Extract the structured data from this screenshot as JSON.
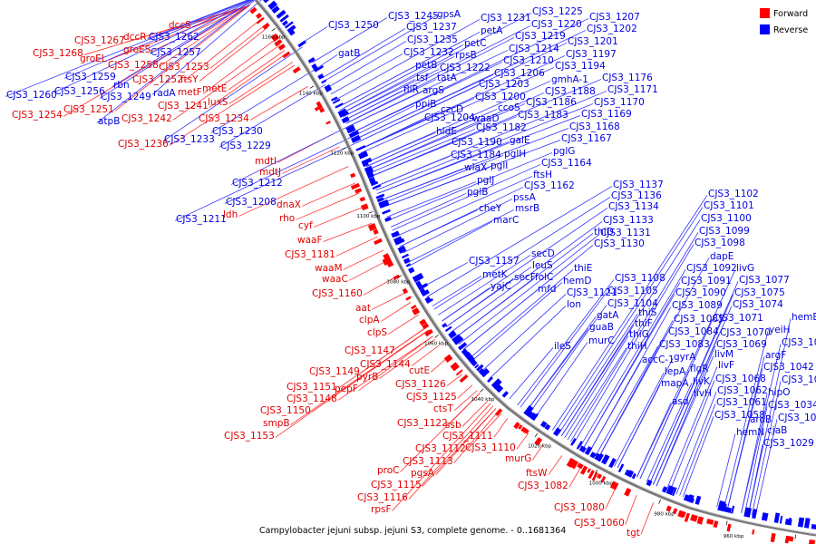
{
  "caption": "Campylobacter jejuni subsp. jejuni S3, complete genome. - 0..1681364",
  "legend": [
    {
      "label": "Forward",
      "color": "#ff0000"
    },
    {
      "label": "Reverse",
      "color": "#0000ff"
    }
  ],
  "strand_colors": {
    "forward": "#ff0000",
    "reverse": "#0000ff",
    "forward_line": "#ff3030",
    "reverse_line": "#3030ff"
  },
  "ticks": [
    "1160 kbp",
    "1140 kbp",
    "1120 kbp",
    "1100 kbp",
    "1080 kbp",
    "1060 kbp",
    "1040 kbp",
    "1020 kbp",
    "1000 kbp",
    "980 kbp",
    "960 kbp",
    "940 kbp"
  ],
  "forward_genes": [
    "dccS",
    "CJS3_1267",
    "dccR",
    "CJS3_1268",
    "groES",
    "groEL",
    "CJS3_1258",
    "CJS3_1253",
    "CJS3_1252",
    "ftsY",
    "metF",
    "metE",
    "luxS",
    "CJS3_1241",
    "CJS3_1254",
    "CJS3_1251",
    "CJS3_1242",
    "CJS3_1234",
    "CJS3_1236",
    "mdtI",
    "mdtJ",
    "dnaX",
    "ldh",
    "rho",
    "cyf",
    "waaF",
    "CJS3_1181",
    "waaM",
    "waaC",
    "CJS3_1160",
    "aat",
    "clpA",
    "clpS",
    "CJS3_1147",
    "CJS3_1144",
    "CJS3_1149",
    "pyrB",
    "CJS3_1151",
    "pepF",
    "CJS3_1148",
    "CJS3_1150",
    "smpB",
    "CJS3_1153",
    "cutE",
    "CJS3_1126",
    "CJS3_1125",
    "ctsT",
    "CJS3_1122",
    "ssb",
    "CJS3_1111",
    "CJS3_1112",
    "CJS3_1110",
    "CJS3_1113",
    "proC",
    "pgsA",
    "CJS3_1115",
    "CJS3_1116",
    "rpsF",
    "murG",
    "ftsW",
    "CJS3_1082",
    "CJS3_1080",
    "CJS3_1060",
    "tgt"
  ],
  "reverse_genes": [
    "CJS3_1262",
    "CJS3_1257",
    "CJS3_1259",
    "rbn",
    "CJS3_1256",
    "CJS3_1260",
    "CJS3_1249",
    "radA",
    "atpB",
    "CJS3_1230",
    "CJS3_1233",
    "CJS3_1229",
    "CJS3_1212",
    "CJS3_1208",
    "CJS3_1211",
    "CJS3_1250",
    "CJS3_1245",
    "gpsA",
    "CJS3_1237",
    "CJS3_1235",
    "gatB",
    "CJS3_1232",
    "petB",
    "tsf",
    "tatA",
    "fliR",
    "argS",
    "ppiB",
    "CJS3_1204",
    "hldE",
    "CJS3_1190",
    "CJS3_1184",
    "pglH",
    "wlaX",
    "pglI",
    "pglJ",
    "pglB",
    "cheY",
    "msrB",
    "marC",
    "pssA",
    "CJS3_1162",
    "CJS3_1231",
    "CJS3_1225",
    "petA",
    "petC",
    "rpsB",
    "CJS3_1222",
    "CJS3_1220",
    "CJS3_1219",
    "CJS3_1214",
    "CJS3_1210",
    "CJS3_1206",
    "CJS3_1203",
    "CJS3_1200",
    "czcD",
    "waaD",
    "CJS3_1182",
    "galE",
    "ftsH",
    "ccoS",
    "CJS3_1186",
    "CJS3_1183",
    "CJS3_1207",
    "CJS3_1202",
    "CJS3_1201",
    "CJS3_1197",
    "CJS3_1194",
    "gmhA-1",
    "CJS3_1188",
    "CJS3_1176",
    "CJS3_1171",
    "CJS3_1170",
    "CJS3_1169",
    "CJS3_1168",
    "CJS3_1167",
    "pglG",
    "CJS3_1164",
    "CJS3_1157",
    "metK",
    "yajC",
    "secD",
    "leuS",
    "secF",
    "folC",
    "mfd",
    "thiD",
    "thiE",
    "hemD",
    "CJS3_1121",
    "lon",
    "CJS3_1137",
    "CJS3_1136",
    "CJS3_1134",
    "CJS3_1133",
    "CJS3_1131",
    "CJS3_1130",
    "CJS3_1108",
    "CJS3_1105",
    "CJS3_1104",
    "gatA",
    "guaB",
    "murC",
    "thiS",
    "thiF",
    "thiG",
    "thiH",
    "ileS",
    "accC-1",
    "lepA",
    "mapA",
    "asd",
    "CJS3_1102",
    "CJS3_1101",
    "CJS3_1100",
    "CJS3_1099",
    "CJS3_1098",
    "dapE",
    "CJS3_1092",
    "CJS3_1091",
    "CJS3_1090",
    "CJS3_1089",
    "CJS3_1085",
    "CJS3_1084",
    "CJS3_1083",
    "gyrA",
    "flgR",
    "livK",
    "livH",
    "livF",
    "livM",
    "livG",
    "CJS3_1077",
    "CJS3_1075",
    "CJS3_1074",
    "CJS3_1071",
    "CJS3_1070",
    "CJS3_1069",
    "CJS3_1068",
    "CJS3_1062",
    "CJS3_1061",
    "CJS3_1058",
    "aroB",
    "hemN",
    "hemB",
    "yeiH",
    "CJS3_1047",
    "argF",
    "CJS3_1042",
    "CJS3_1040",
    "hipO",
    "CJS3_1034",
    "CJS3_1032",
    "cjaB",
    "CJS3_1029",
    "CJS3_1028"
  ]
}
